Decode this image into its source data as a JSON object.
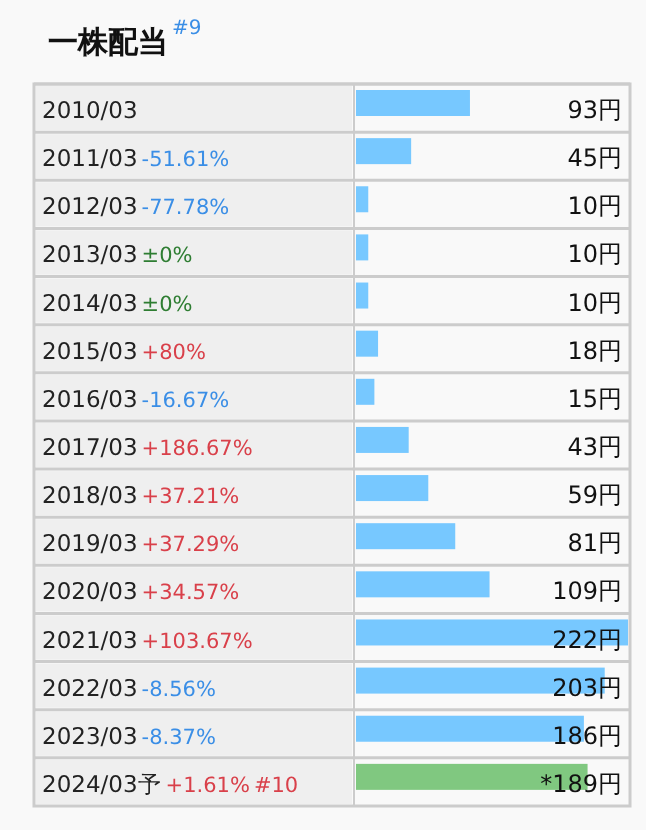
{
  "chart_data": {
    "type": "bar",
    "orientation": "horizontal",
    "title": "一株配当",
    "annotations": [
      "#9",
      "-51.61%",
      "-77.78%",
      "±0%",
      "±0%",
      "+80%",
      "-16.67%",
      "+186.67%",
      "+37.21%",
      "+37.29%",
      "+34.57%",
      "+103.67%",
      "-8.56%",
      "-8.37%",
      "+1.61%",
      "#10"
    ],
    "categories": [
      "2010/03",
      "2011/03",
      "2012/03",
      "2013/03",
      "2014/03",
      "2015/03",
      "2016/03",
      "2017/03",
      "2018/03",
      "2019/03",
      "2020/03",
      "2021/03",
      "2022/03",
      "2023/03",
      "2024/03予"
    ],
    "values": [
      93,
      45,
      10,
      10,
      10,
      18,
      15,
      43,
      59,
      81,
      109,
      222,
      203,
      186,
      189
    ],
    "colors": [
      "#77c8ff",
      "#77c8ff",
      "#77c8ff",
      "#77c8ff",
      "#77c8ff",
      "#77c8ff",
      "#77c8ff",
      "#77c8ff",
      "#77c8ff",
      "#77c8ff",
      "#77c8ff",
      "#77c8ff",
      "#77c8ff",
      "#77c8ff",
      "#80c880"
    ],
    "value_labels": [
      "93円",
      "45円",
      "10円",
      "10円",
      "10円",
      "18円",
      "15円",
      "43円",
      "59円",
      "81円",
      "109円",
      "222円",
      "203円",
      "186円",
      "*189円"
    ],
    "xlim": [
      0,
      222
    ]
  }
}
